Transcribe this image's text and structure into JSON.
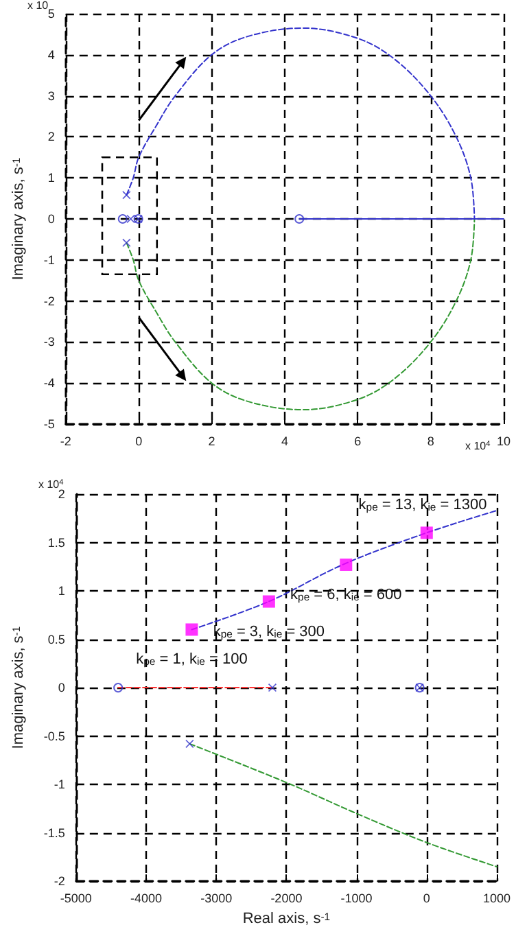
{
  "chart_data": [
    {
      "type": "line",
      "ylabel": "Imaginary axis, s$^{-1}$",
      "annotations": [
        "x 10",
        "x 10$^{4}$"
      ],
      "xlim": [
        -2,
        10
      ],
      "xticks": [
        -2,
        0,
        2,
        4,
        6,
        8,
        10
      ],
      "ylim": [
        -5,
        5
      ],
      "yticks": [
        -5,
        -4,
        -3,
        -2,
        -1,
        0,
        1,
        2,
        3,
        4,
        5
      ],
      "grid": true,
      "series": [
        {
          "color": "#3333cc",
          "line_style": "dashed",
          "x": [
            -0.335,
            -0.15,
            0,
            0.5,
            1,
            2,
            3,
            4.5,
            6,
            7,
            8,
            8.7,
            9.1,
            9.2
          ],
          "values": [
            0.58,
            1.0,
            1.5,
            2.3,
            3.0,
            4.0,
            4.45,
            4.65,
            4.4,
            3.9,
            3.0,
            2.0,
            1.0,
            0
          ]
        },
        {
          "color": "#339933",
          "line_style": "dashed",
          "x": [
            -0.335,
            -0.15,
            0,
            0.5,
            1,
            2,
            3,
            4.5,
            6,
            7,
            8,
            8.7,
            9.1,
            9.2
          ],
          "values": [
            -0.58,
            -1.0,
            -1.5,
            -2.3,
            -3.0,
            -4.0,
            -4.45,
            -4.65,
            -4.4,
            -3.9,
            -3.0,
            -2.0,
            -1.0,
            0
          ]
        },
        {
          "color": "#3333cc",
          "line_style": "solid",
          "x": [
            4.4,
            10
          ],
          "values": [
            0,
            0
          ]
        },
        {
          "type": "scatter",
          "marker": "cross",
          "color": "#3333cc",
          "x": [
            -0.335,
            -0.335,
            -0.22,
            -0.01
          ],
          "values": [
            0.58,
            -0.58,
            0,
            0
          ]
        },
        {
          "type": "scatter",
          "marker": "circle",
          "color": "#3333cc",
          "x": [
            -0.44,
            -0.01,
            4.4
          ],
          "values": [
            0,
            0,
            0
          ]
        }
      ]
    },
    {
      "type": "line",
      "xlabel": "Real axis, s$^{-1}$",
      "ylabel": "Imaginary axis, s$^{-1}$",
      "annotations": [
        "x 10$^{4}$",
        {
          "text": "k$_{pe}$ = 13, k$_{ie}$ = 1300",
          "x": 0,
          "y": 1.6
        },
        {
          "text": "k$_{pe}$ = 6, k$_{ie}$ = 600",
          "x": -1150,
          "y": 1.27
        },
        {
          "text": "k$_{pe}$ = 3, k$_{ie}$ = 300",
          "x": -2250,
          "y": 0.89
        },
        {
          "text": "k$_{pe}$ = 1, k$_{ie}$ = 100",
          "x": -3350,
          "y": 0.6
        }
      ],
      "xlim": [
        -5000,
        1000
      ],
      "xticks": [
        -5000,
        -4000,
        -3000,
        -2000,
        -1000,
        0,
        1000
      ],
      "ylim": [
        -2,
        2
      ],
      "yticks": [
        -2,
        -1.5,
        -1,
        -0.5,
        0,
        0.5,
        1,
        1.5,
        2
      ],
      "grid": true,
      "series": [
        {
          "color": "#3333cc",
          "line_style": "dashed",
          "x": [
            -3350,
            -2250,
            -1200,
            0,
            1000
          ],
          "values": [
            0.6,
            0.89,
            1.27,
            1.6,
            1.83
          ]
        },
        {
          "color": "#339933",
          "line_style": "dashed",
          "x": [
            -3380,
            -2000,
            -1000,
            0,
            1000
          ],
          "values": [
            -0.58,
            -0.98,
            -1.3,
            -1.6,
            -1.85
          ]
        },
        {
          "color": "#ff3333",
          "line_style": "dashed",
          "x": [
            -4400,
            -2200
          ],
          "values": [
            0,
            0
          ]
        },
        {
          "type": "scatter",
          "marker": "square",
          "color": "#ff00ff",
          "x": [
            -3350,
            -2250,
            -1150,
            0
          ],
          "values": [
            0.6,
            0.89,
            1.27,
            1.6
          ]
        },
        {
          "type": "scatter",
          "marker": "cross",
          "color": "#3333cc",
          "x": [
            -3380,
            -2200,
            -100
          ],
          "values": [
            -0.58,
            0,
            0
          ]
        },
        {
          "type": "scatter",
          "marker": "circle",
          "color": "#3333cc",
          "x": [
            -4400,
            -100
          ],
          "values": [
            0,
            0
          ]
        }
      ]
    }
  ]
}
